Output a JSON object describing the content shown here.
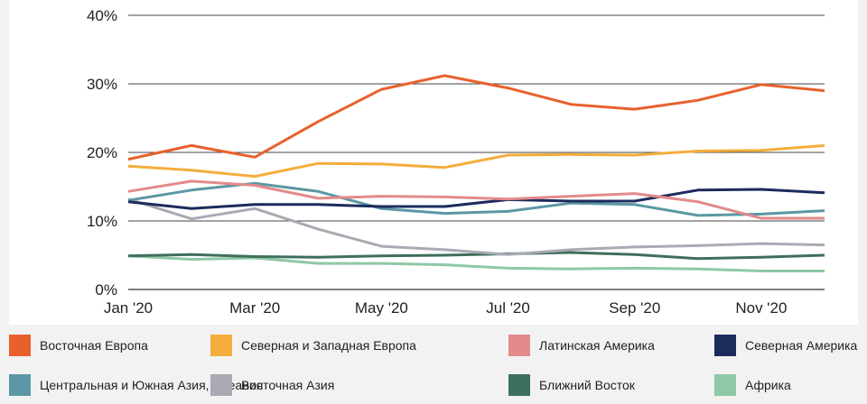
{
  "chart_data": {
    "type": "line",
    "x": [
      "2020-01",
      "2020-02",
      "2020-03",
      "2020-04",
      "2020-05",
      "2020-06",
      "2020-07",
      "2020-08",
      "2020-09",
      "2020-10",
      "2020-11",
      "2020-12"
    ],
    "x_tick_labels": [
      "Jan '20",
      "Mar '20",
      "May '20",
      "Jul '20",
      "Sep '20",
      "Nov '20"
    ],
    "y_tick_labels": [
      "0%",
      "10%",
      "20%",
      "30%",
      "40%"
    ],
    "ylim": [
      0,
      40
    ],
    "grid": "horizontal",
    "legend_position": "bottom",
    "series": [
      {
        "name": "Восточная Европа",
        "color": "#e8612c",
        "values": [
          19.0,
          21.0,
          19.3,
          24.5,
          29.2,
          31.2,
          29.4,
          27.0,
          26.3,
          27.6,
          29.9,
          29.0
        ]
      },
      {
        "name": "Северная и Западная Европа",
        "color": "#f4ad3c",
        "values": [
          18.0,
          17.4,
          16.5,
          18.4,
          18.3,
          17.8,
          19.6,
          19.7,
          19.6,
          20.2,
          20.3,
          21.0
        ]
      },
      {
        "name": "Латинская Америка",
        "color": "#e38a8a",
        "values": [
          14.3,
          15.8,
          15.2,
          13.3,
          13.6,
          13.5,
          13.2,
          13.6,
          14.0,
          12.8,
          10.4,
          10.4
        ]
      },
      {
        "name": "Северная Америка",
        "color": "#1d2b5c",
        "values": [
          12.8,
          11.8,
          12.4,
          12.4,
          12.1,
          12.1,
          13.1,
          12.9,
          12.9,
          14.5,
          14.6,
          14.1
        ]
      },
      {
        "name": "Центральная и Южная Азия, Океания",
        "color": "#5b97a4",
        "values": [
          13.0,
          14.5,
          15.5,
          14.3,
          11.8,
          11.1,
          11.4,
          12.6,
          12.4,
          10.8,
          11.0,
          11.5
        ]
      },
      {
        "name": "Восточная Азия",
        "color": "#a9aab3",
        "values": [
          13.2,
          10.3,
          11.8,
          8.8,
          6.3,
          5.8,
          5.1,
          5.8,
          6.2,
          6.4,
          6.7,
          6.5
        ]
      },
      {
        "name": "Ближний Восток",
        "color": "#3e6f5c",
        "values": [
          4.9,
          5.1,
          4.8,
          4.7,
          4.9,
          5.0,
          5.2,
          5.4,
          5.1,
          4.5,
          4.7,
          5.0
        ]
      },
      {
        "name": "Африка",
        "color": "#8ec8a6",
        "values": [
          4.9,
          4.4,
          4.6,
          3.8,
          3.8,
          3.6,
          3.1,
          3.0,
          3.1,
          3.0,
          2.7,
          2.7
        ]
      }
    ]
  }
}
